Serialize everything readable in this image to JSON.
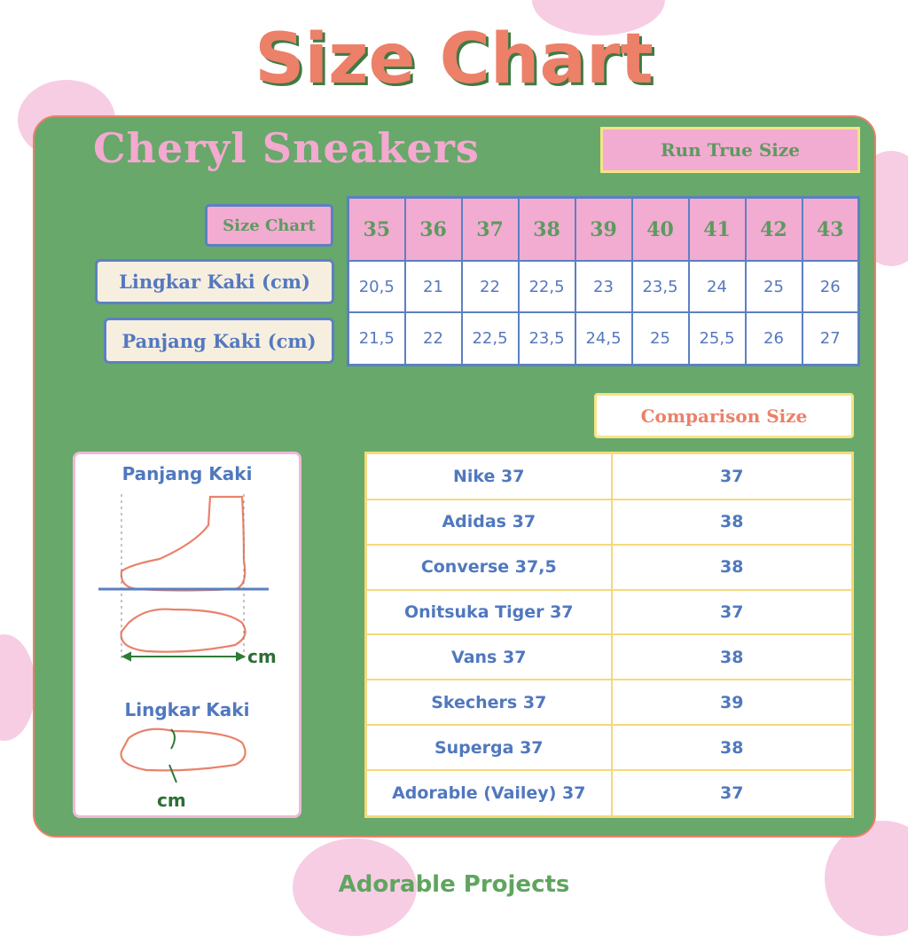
{
  "title": "Size Chart",
  "brand": "Cheryl Sneakers",
  "fit_badge": "Run True Size",
  "size_table": {
    "header_label": "Size Chart",
    "sizes": [
      "35",
      "36",
      "37",
      "38",
      "39",
      "40",
      "41",
      "42",
      "43"
    ],
    "rows": [
      {
        "label": "Lingkar Kaki (cm)",
        "values": [
          "20,5",
          "21",
          "22",
          "22,5",
          "23",
          "23,5",
          "24",
          "25",
          "26"
        ]
      },
      {
        "label": "Panjang Kaki (cm)",
        "values": [
          "21,5",
          "22",
          "22,5",
          "23,5",
          "24,5",
          "25",
          "25,5",
          "26",
          "27"
        ]
      }
    ]
  },
  "comparison": {
    "title": "Comparison Size",
    "rows": [
      {
        "brand": "Nike 37",
        "size": "37"
      },
      {
        "brand": "Adidas 37",
        "size": "38"
      },
      {
        "brand": "Converse 37,5",
        "size": "38"
      },
      {
        "brand": "Onitsuka Tiger 37",
        "size": "37"
      },
      {
        "brand": "Vans 37",
        "size": "38"
      },
      {
        "brand": "Skechers 37",
        "size": "39"
      },
      {
        "brand": "Superga 37",
        "size": "38"
      },
      {
        "brand": "Adorable (Vailey) 37",
        "size": "37"
      }
    ]
  },
  "guide": {
    "length_title": "Panjang Kaki",
    "girth_title": "Lingkar Kaki",
    "unit": "cm"
  },
  "footer": "Adorable Projects",
  "colors": {
    "panel": "#68a86b",
    "pink": "#f2abd1",
    "coral": "#ec8068",
    "blue": "#5c80c2",
    "yellow": "#f4d97a"
  }
}
